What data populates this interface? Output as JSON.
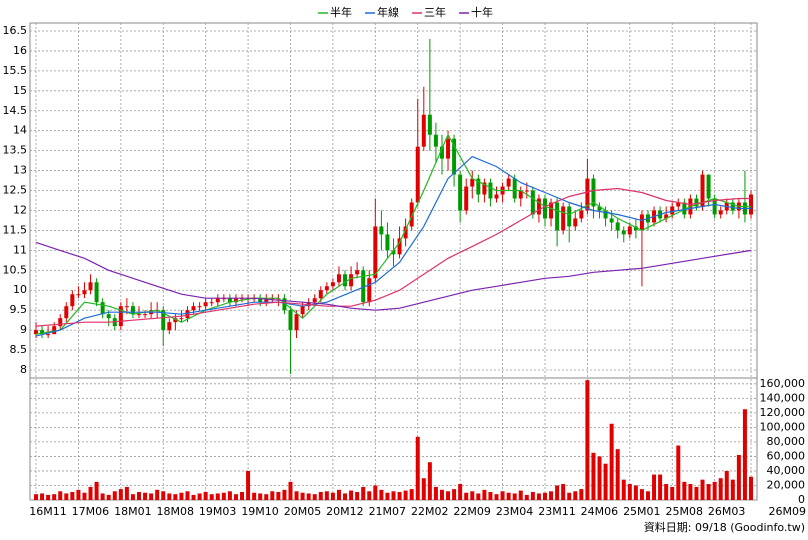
{
  "chart_data": {
    "type": "candlestick",
    "legend": [
      "半年",
      "年線",
      "三年",
      "十年"
    ],
    "footer": "資料日期: 09/18 (Goodinfo.tw)",
    "categories": [
      "16M11",
      null,
      null,
      null,
      null,
      null,
      null,
      "17M06",
      null,
      null,
      null,
      null,
      null,
      null,
      "18M01",
      null,
      null,
      null,
      null,
      null,
      null,
      "18M08",
      null,
      null,
      null,
      null,
      null,
      null,
      "19M03",
      null,
      null,
      null,
      null,
      null,
      null,
      "19M10",
      null,
      null,
      null,
      null,
      null,
      null,
      "20M05",
      null,
      null,
      null,
      null,
      null,
      null,
      "20M12",
      null,
      null,
      null,
      null,
      null,
      null,
      "21M07",
      null,
      null,
      null,
      null,
      null,
      null,
      "22M02",
      null,
      null,
      null,
      null,
      null,
      null,
      "22M09",
      null,
      null,
      null,
      null,
      null,
      null,
      "23M04",
      null,
      null,
      null,
      null,
      null,
      null,
      "23M11",
      null,
      null,
      null,
      null,
      null,
      null,
      "24M06",
      null,
      null,
      null,
      null,
      null,
      null,
      "25M01",
      null,
      null,
      null,
      null,
      null,
      null,
      "25M08",
      null,
      null,
      null,
      null,
      null,
      null,
      "26M03",
      null,
      null,
      null,
      null,
      null,
      "26M09"
    ],
    "open": [
      8.9,
      9.0,
      8.9,
      8.9,
      9.1,
      9.3,
      9.6,
      9.9,
      9.9,
      10.0,
      10.2,
      9.7,
      9.4,
      9.3,
      9.1,
      9.6,
      9.6,
      9.4,
      9.4,
      9.4,
      9.5,
      9.5,
      9.0,
      9.2,
      9.3,
      9.3,
      9.5,
      9.6,
      9.6,
      9.7,
      9.7,
      9.8,
      9.8,
      9.7,
      9.8,
      9.8,
      9.8,
      9.8,
      9.7,
      9.8,
      9.8,
      9.8,
      9.5,
      9.0,
      9.4,
      9.6,
      9.7,
      9.8,
      10.0,
      10.1,
      10.2,
      10.4,
      10.1,
      10.4,
      10.5,
      9.7,
      10.3,
      11.6,
      11.4,
      11.0,
      10.9,
      11.3,
      11.6,
      12.2,
      13.6,
      14.4,
      13.9,
      13.6,
      13.3,
      13.8,
      12.9,
      12.0,
      12.6,
      12.8,
      12.4,
      12.7,
      12.3,
      12.4,
      12.6,
      12.8,
      12.3,
      12.5,
      12.5,
      11.9,
      12.3,
      11.8,
      12.2,
      11.5,
      12.1,
      11.6,
      11.8,
      12.0,
      12.8,
      12.1,
      12.0,
      11.8,
      11.7,
      11.5,
      11.4,
      11.6,
      11.5,
      11.9,
      11.7,
      12.0,
      11.8,
      11.9,
      12.1,
      12.2,
      11.9,
      12.3,
      12.1,
      12.9,
      12.3,
      11.9,
      12.0,
      12.2,
      12.0,
      12.2,
      11.9
    ],
    "high": [
      9.2,
      9.1,
      9.1,
      9.2,
      9.4,
      9.7,
      10.0,
      10.1,
      10.2,
      10.4,
      10.3,
      9.8,
      9.5,
      9.4,
      9.7,
      9.8,
      9.7,
      9.6,
      9.5,
      9.7,
      9.7,
      9.6,
      9.3,
      9.4,
      9.5,
      9.6,
      9.7,
      9.7,
      9.8,
      9.8,
      9.9,
      9.9,
      9.9,
      9.9,
      9.9,
      9.9,
      9.9,
      9.9,
      9.9,
      9.9,
      9.9,
      9.9,
      9.6,
      9.5,
      9.7,
      9.8,
      9.9,
      10.1,
      10.2,
      10.3,
      10.6,
      10.5,
      10.6,
      10.7,
      10.6,
      10.5,
      12.3,
      12.0,
      11.7,
      11.3,
      11.6,
      11.8,
      12.3,
      14.8,
      15.1,
      16.3,
      14.2,
      13.9,
      14.0,
      13.9,
      13.0,
      12.8,
      13.0,
      12.9,
      12.8,
      12.8,
      12.6,
      12.7,
      12.9,
      12.9,
      12.6,
      12.7,
      12.6,
      12.4,
      12.4,
      12.3,
      12.3,
      12.2,
      12.2,
      12.0,
      12.2,
      13.3,
      12.9,
      12.2,
      12.1,
      12.0,
      11.8,
      11.6,
      11.7,
      11.8,
      12.0,
      12.0,
      12.1,
      12.1,
      12.1,
      12.2,
      12.3,
      12.3,
      12.4,
      12.4,
      13.0,
      12.9,
      12.4,
      12.1,
      12.3,
      12.3,
      12.3,
      13.0,
      12.5
    ],
    "low": [
      8.8,
      8.8,
      8.8,
      8.9,
      9.0,
      9.2,
      9.5,
      9.8,
      9.8,
      9.9,
      9.6,
      9.3,
      9.1,
      9.0,
      9.0,
      9.4,
      9.3,
      9.3,
      9.3,
      9.3,
      9.3,
      8.6,
      8.9,
      9.0,
      9.2,
      9.2,
      9.4,
      9.5,
      9.5,
      9.6,
      9.6,
      9.7,
      9.6,
      9.6,
      9.7,
      9.6,
      9.7,
      9.6,
      9.6,
      9.7,
      9.6,
      9.4,
      7.9,
      8.8,
      9.3,
      9.5,
      9.6,
      9.7,
      9.9,
      10.0,
      10.1,
      10.0,
      10.0,
      10.3,
      9.6,
      9.6,
      10.2,
      11.0,
      10.8,
      10.6,
      10.8,
      11.1,
      11.5,
      12.1,
      13.5,
      13.5,
      13.2,
      12.9,
      13.0,
      12.6,
      11.7,
      11.9,
      12.3,
      12.2,
      12.2,
      12.1,
      12.2,
      12.2,
      12.5,
      12.2,
      12.1,
      12.3,
      11.8,
      11.7,
      11.6,
      11.6,
      11.1,
      11.4,
      11.2,
      11.5,
      11.7,
      11.9,
      11.8,
      11.8,
      11.6,
      11.5,
      11.3,
      11.2,
      11.3,
      11.3,
      10.1,
      11.5,
      11.6,
      11.7,
      11.7,
      11.8,
      12.0,
      11.8,
      11.8,
      12.0,
      12.0,
      12.1,
      11.8,
      11.8,
      11.9,
      11.9,
      11.8,
      11.7,
      11.8
    ],
    "close": [
      9.0,
      8.9,
      8.9,
      9.1,
      9.3,
      9.6,
      9.9,
      9.9,
      10.0,
      10.2,
      9.7,
      9.4,
      9.3,
      9.1,
      9.6,
      9.6,
      9.4,
      9.4,
      9.4,
      9.5,
      9.5,
      9.0,
      9.2,
      9.3,
      9.3,
      9.5,
      9.6,
      9.6,
      9.7,
      9.7,
      9.8,
      9.8,
      9.7,
      9.8,
      9.8,
      9.8,
      9.8,
      9.7,
      9.8,
      9.8,
      9.8,
      9.5,
      9.0,
      9.4,
      9.6,
      9.7,
      9.8,
      10.0,
      10.1,
      10.2,
      10.4,
      10.1,
      10.4,
      10.5,
      9.7,
      10.3,
      11.6,
      11.4,
      11.0,
      10.9,
      11.3,
      11.6,
      12.2,
      13.6,
      14.4,
      13.9,
      13.6,
      13.3,
      13.8,
      12.9,
      12.0,
      12.6,
      12.8,
      12.4,
      12.7,
      12.3,
      12.4,
      12.6,
      12.8,
      12.3,
      12.5,
      12.5,
      11.9,
      12.3,
      11.8,
      12.2,
      11.5,
      12.1,
      11.6,
      11.8,
      12.0,
      12.8,
      12.1,
      12.0,
      11.8,
      11.7,
      11.5,
      11.4,
      11.6,
      11.5,
      11.9,
      11.7,
      12.0,
      11.8,
      11.9,
      12.1,
      12.2,
      11.9,
      12.3,
      12.1,
      12.9,
      12.3,
      11.9,
      12.0,
      12.2,
      12.0,
      12.2,
      11.9,
      12.4
    ],
    "volume": [
      8000,
      9000,
      7000,
      8000,
      12000,
      9000,
      11000,
      14000,
      10000,
      18000,
      25000,
      9000,
      7000,
      12000,
      15000,
      18000,
      8000,
      11000,
      10000,
      9000,
      14000,
      12000,
      9000,
      8000,
      10000,
      12000,
      7000,
      9000,
      11000,
      8000,
      9000,
      10000,
      12000,
      8000,
      11000,
      40000,
      10000,
      9000,
      8000,
      12000,
      11000,
      14000,
      25000,
      12000,
      10000,
      9000,
      8000,
      11000,
      12000,
      10000,
      14000,
      9000,
      13000,
      11000,
      18000,
      12000,
      20000,
      14000,
      10000,
      12000,
      11000,
      13000,
      15000,
      87000,
      30000,
      52000,
      18000,
      14000,
      12000,
      15000,
      22000,
      10000,
      12000,
      9000,
      14000,
      11000,
      8000,
      12000,
      10000,
      9000,
      13000,
      7000,
      11000,
      9000,
      10000,
      12000,
      20000,
      22000,
      10000,
      12000,
      15000,
      165000,
      65000,
      60000,
      50000,
      105000,
      70000,
      28000,
      22000,
      20000,
      15000,
      12000,
      35000,
      35000,
      22000,
      18000,
      75000,
      25000,
      22000,
      18000,
      28000,
      22000,
      25000,
      30000,
      40000,
      28000,
      62000,
      125000,
      32000
    ],
    "up_color": "#e00000",
    "down_color": "#009900",
    "volume_color": "#e00000",
    "ylim": [
      7.8,
      16.7
    ],
    "yticks": [
      8,
      8.5,
      9,
      9.5,
      10,
      10.5,
      11,
      11.5,
      12,
      12.5,
      13,
      13.5,
      14,
      14.5,
      15,
      15.5,
      16,
      16.5
    ],
    "y2lim": [
      0,
      168000
    ],
    "y2ticks": [
      0,
      {
        "value": 20000,
        "label": "20,000"
      },
      {
        "value": 40000,
        "label": "40,000"
      },
      {
        "value": 60000,
        "label": "60,000"
      },
      {
        "value": 80000,
        "label": "80,000"
      },
      {
        "value": 100000,
        "label": "100,000"
      },
      {
        "value": 120000,
        "label": "120,000"
      },
      {
        "value": 140000,
        "label": "140,000"
      },
      {
        "value": 160000,
        "label": "160,000"
      }
    ],
    "grid": true,
    "lines": {
      "x": [
        0,
        4,
        8,
        12,
        16,
        20,
        24,
        28,
        32,
        36,
        40,
        44,
        48,
        52,
        56,
        60,
        64,
        68,
        72,
        76,
        80,
        84,
        88,
        92,
        96,
        100,
        104,
        108,
        112,
        116,
        118
      ],
      "series": [
        {
          "name": "半年",
          "color": "#22b922",
          "values": [
            8.9,
            9.0,
            9.7,
            9.6,
            9.4,
            9.5,
            9.2,
            9.5,
            9.7,
            9.8,
            9.8,
            9.3,
            9.9,
            10.3,
            10.4,
            11.2,
            12.5,
            13.9,
            12.8,
            12.5,
            12.5,
            12.1,
            11.9,
            12.2,
            11.8,
            11.5,
            11.8,
            12.1,
            12.3,
            12.1,
            12.1
          ]
        },
        {
          "name": "年線",
          "color": "#1e6cd6",
          "values": [
            8.85,
            9.0,
            9.3,
            9.45,
            9.45,
            9.45,
            9.4,
            9.5,
            9.6,
            9.7,
            9.7,
            9.6,
            9.7,
            9.95,
            10.2,
            10.7,
            11.6,
            12.8,
            13.35,
            13.1,
            12.7,
            12.45,
            12.2,
            12.0,
            11.9,
            11.75,
            11.95,
            12.05,
            12.15,
            12.05,
            12.05
          ]
        },
        {
          "name": "三年",
          "color": "#e0306a",
          "values": [
            9.1,
            9.15,
            9.2,
            9.2,
            9.25,
            9.3,
            9.35,
            9.45,
            9.55,
            9.65,
            9.7,
            9.65,
            9.6,
            9.6,
            9.75,
            10.0,
            10.4,
            10.8,
            11.1,
            11.4,
            11.75,
            12.1,
            12.35,
            12.5,
            12.55,
            12.45,
            12.25,
            12.15,
            12.25,
            12.3,
            12.3
          ]
        },
        {
          "name": "十年",
          "color": "#7b22b0",
          "values": [
            11.2,
            11.0,
            10.8,
            10.5,
            10.3,
            10.1,
            9.9,
            9.8,
            9.8,
            9.8,
            9.75,
            9.7,
            9.65,
            9.55,
            9.5,
            9.55,
            9.7,
            9.85,
            10.0,
            10.1,
            10.2,
            10.3,
            10.35,
            10.45,
            10.5,
            10.55,
            10.65,
            10.75,
            10.85,
            10.95,
            11.0
          ]
        }
      ]
    }
  }
}
